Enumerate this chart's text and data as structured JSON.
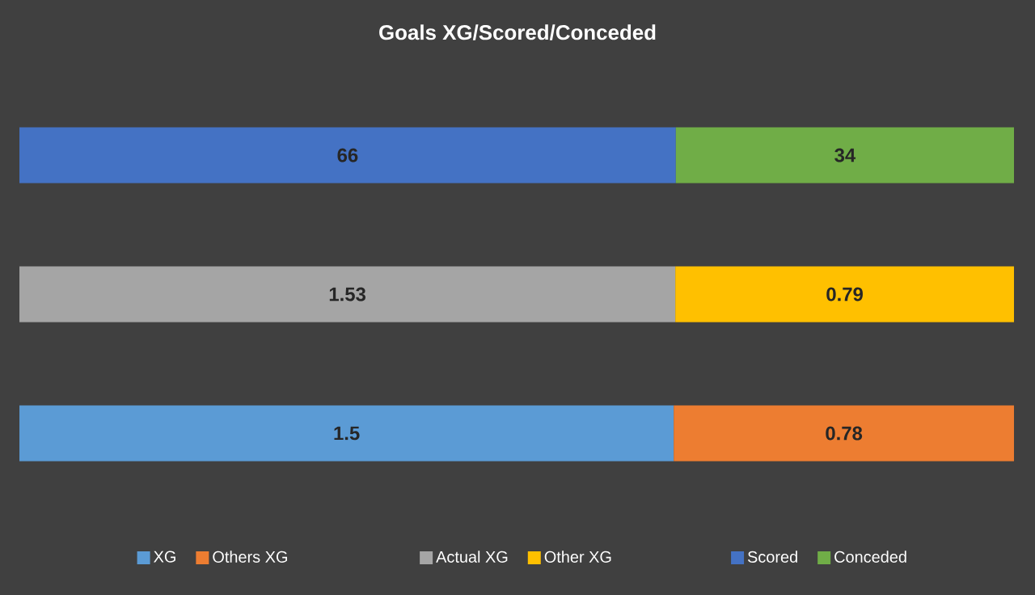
{
  "chart_data": [
    {
      "type": "bar",
      "title": "Goals XG/Scored/Conceded",
      "orientation": "horizontal",
      "stacked": true,
      "data_labels": true,
      "legend": "bottom",
      "categories": [
        null
      ],
      "series": [
        {
          "name": "Scored",
          "color": "#4472c4",
          "values": [
            66
          ]
        },
        {
          "name": "Conceded",
          "color": "#70ad47",
          "values": [
            34
          ]
        }
      ]
    },
    {
      "type": "bar",
      "orientation": "horizontal",
      "stacked": true,
      "data_labels": true,
      "legend": "bottom",
      "categories": [
        null
      ],
      "series": [
        {
          "name": "Actual XG",
          "color": "#a5a5a5",
          "values": [
            1.53
          ]
        },
        {
          "name": "Other XG",
          "color": "#ffc000",
          "values": [
            0.79
          ]
        }
      ]
    },
    {
      "type": "bar",
      "orientation": "horizontal",
      "stacked": true,
      "data_labels": true,
      "legend": "bottom",
      "categories": [
        null
      ],
      "series": [
        {
          "name": "XG",
          "color": "#5b9bd5",
          "values": [
            1.5
          ]
        },
        {
          "name": "Others XG",
          "color": "#ed7d31",
          "values": [
            0.78
          ]
        }
      ]
    }
  ]
}
